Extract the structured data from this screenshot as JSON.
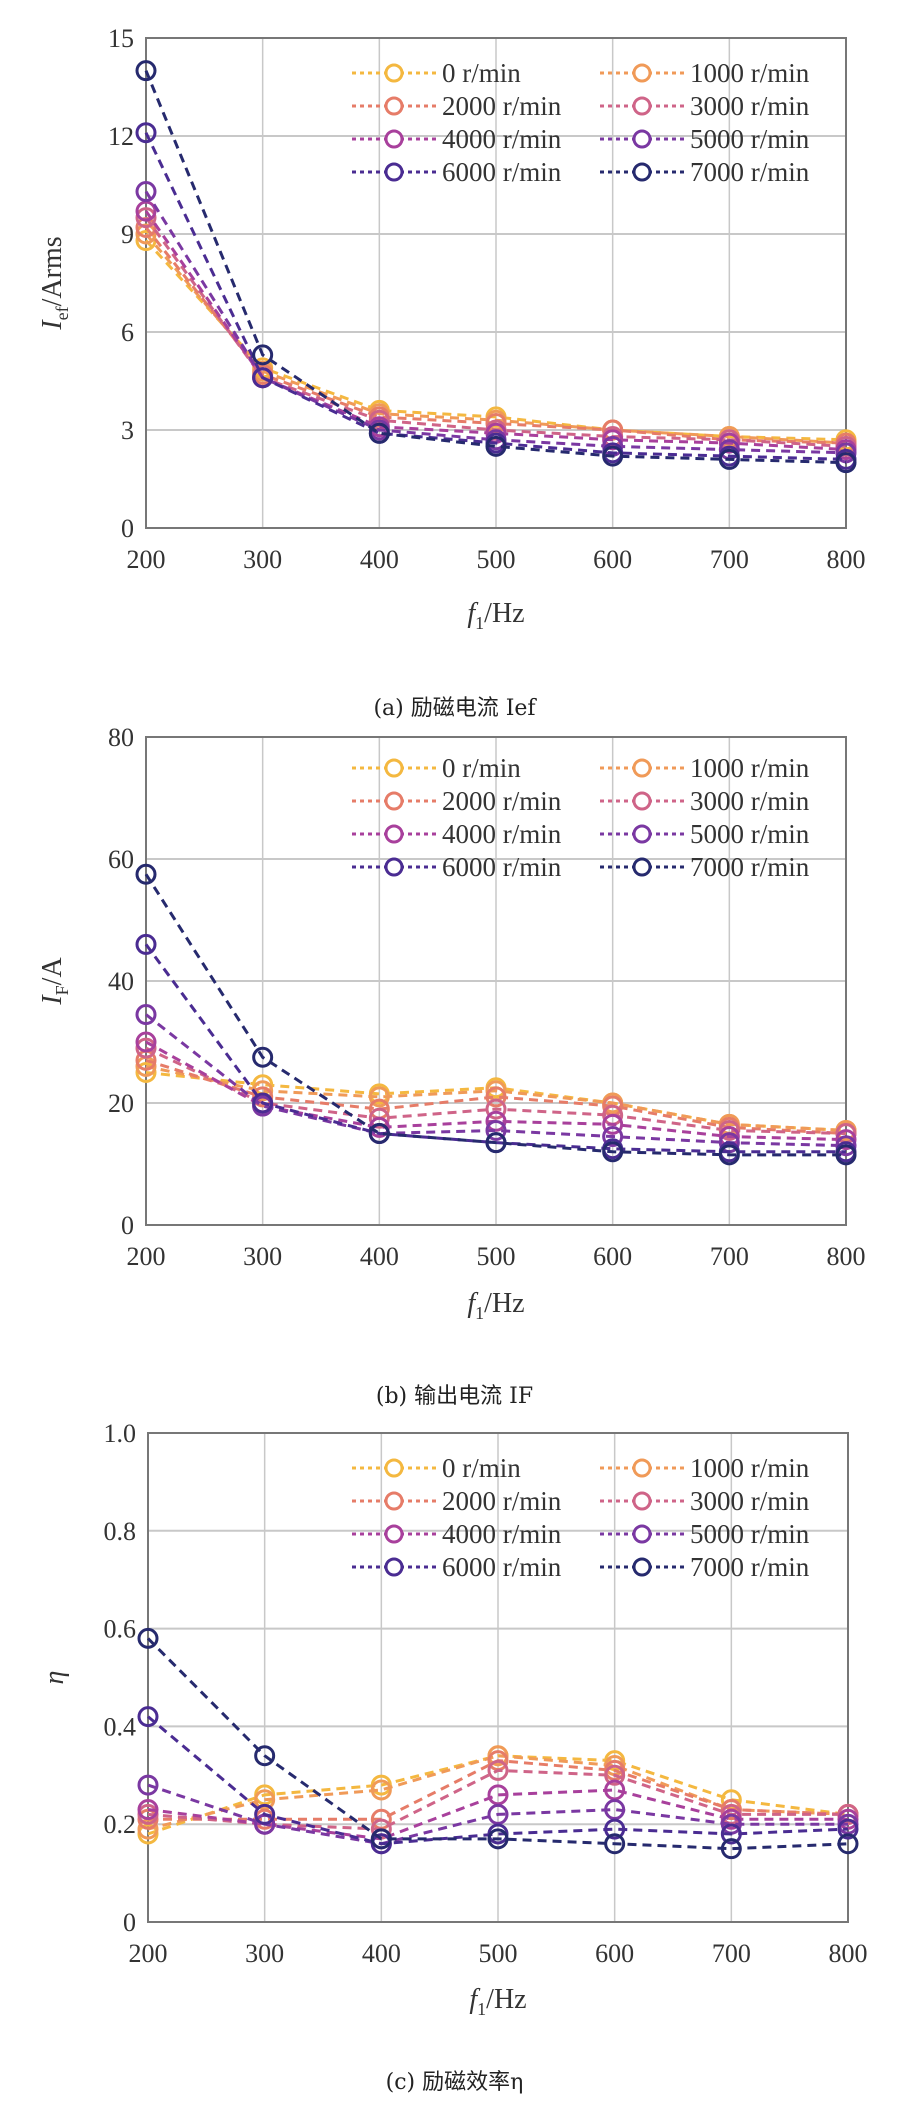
{
  "x_ticks": [
    "200",
    "300",
    "400",
    "500",
    "600",
    "700",
    "800"
  ],
  "chart_data": [
    {
      "type": "line",
      "x": [
        200,
        300,
        400,
        500,
        600,
        700,
        800
      ],
      "xlim": [
        200,
        800
      ],
      "ylim": [
        0,
        15
      ],
      "y_ticks": [
        0,
        3,
        6,
        9,
        12,
        15
      ],
      "xlabel": {
        "symbol": "f",
        "subscript": "1",
        "unit": "/Hz"
      },
      "ylabel": {
        "symbol": "I",
        "subscript": "ef",
        "unit": "/Arms"
      },
      "grid": true,
      "legend": "top-right",
      "line_style": "dashed",
      "marker": "open-circle",
      "caption": "(a) 励磁电流 Ief",
      "series": [
        {
          "name": "0 r/min",
          "color": "#f4b840",
          "values": [
            8.8,
            4.9,
            3.6,
            3.4,
            3.0,
            2.8,
            2.7
          ]
        },
        {
          "name": "1000 r/min",
          "color": "#f09a58",
          "values": [
            9.0,
            4.8,
            3.5,
            3.3,
            3.0,
            2.8,
            2.6
          ]
        },
        {
          "name": "2000 r/min",
          "color": "#e67c68",
          "values": [
            9.2,
            4.7,
            3.4,
            3.2,
            3.0,
            2.7,
            2.6
          ]
        },
        {
          "name": "3000 r/min",
          "color": "#cf6488",
          "values": [
            9.5,
            4.6,
            3.3,
            3.0,
            2.8,
            2.7,
            2.5
          ]
        },
        {
          "name": "4000 r/min",
          "color": "#a8409c",
          "values": [
            9.7,
            4.6,
            3.1,
            2.9,
            2.7,
            2.6,
            2.4
          ]
        },
        {
          "name": "5000 r/min",
          "color": "#7a38a2",
          "values": [
            10.3,
            4.6,
            3.0,
            2.7,
            2.5,
            2.4,
            2.3
          ]
        },
        {
          "name": "6000 r/min",
          "color": "#4a2c92",
          "values": [
            12.1,
            4.6,
            2.9,
            2.6,
            2.3,
            2.2,
            2.1
          ]
        },
        {
          "name": "7000 r/min",
          "color": "#262a6e",
          "values": [
            14.0,
            5.3,
            2.9,
            2.5,
            2.2,
            2.1,
            2.0
          ]
        }
      ]
    },
    {
      "type": "line",
      "x": [
        200,
        300,
        400,
        500,
        600,
        700,
        800
      ],
      "xlim": [
        200,
        800
      ],
      "ylim": [
        0,
        80
      ],
      "y_ticks": [
        0,
        20,
        40,
        60,
        80
      ],
      "xlabel": {
        "symbol": "f",
        "subscript": "1",
        "unit": "/Hz"
      },
      "ylabel": {
        "symbol": "I",
        "subscript": "F",
        "unit": "/A"
      },
      "grid": true,
      "legend": "top-right",
      "line_style": "dashed",
      "marker": "open-circle",
      "caption": "(b) 输出电流 IF",
      "series": [
        {
          "name": "0 r/min",
          "color": "#f4b840",
          "values": [
            25,
            23,
            21.5,
            22.5,
            20,
            16.5,
            15.5
          ]
        },
        {
          "name": "1000 r/min",
          "color": "#f09a58",
          "values": [
            26,
            22,
            21,
            22,
            20,
            16.5,
            15.5
          ]
        },
        {
          "name": "2000 r/min",
          "color": "#e67c68",
          "values": [
            27,
            21,
            19,
            21,
            19.5,
            16,
            15
          ]
        },
        {
          "name": "3000 r/min",
          "color": "#cf6488",
          "values": [
            29,
            20,
            17.5,
            19,
            18,
            15.5,
            15
          ]
        },
        {
          "name": "4000 r/min",
          "color": "#a8409c",
          "values": [
            30,
            19.5,
            16,
            17,
            16.5,
            14.5,
            14
          ]
        },
        {
          "name": "5000 r/min",
          "color": "#7a38a2",
          "values": [
            34.5,
            19.5,
            15,
            15.5,
            14.5,
            13.5,
            13
          ]
        },
        {
          "name": "6000 r/min",
          "color": "#4a2c92",
          "values": [
            46,
            20,
            15,
            13.5,
            12.5,
            12,
            12
          ]
        },
        {
          "name": "7000 r/min",
          "color": "#262a6e",
          "values": [
            57.5,
            27.5,
            15,
            13.5,
            12,
            11.5,
            11.5
          ]
        }
      ]
    },
    {
      "type": "line",
      "x": [
        200,
        300,
        400,
        500,
        600,
        700,
        800
      ],
      "xlim": [
        200,
        800
      ],
      "ylim": [
        0,
        1.0
      ],
      "y_ticks": [
        0,
        0.2,
        0.4,
        0.6,
        0.8,
        1.0
      ],
      "y_tick_labels": [
        "0",
        "0.2",
        "0.4",
        "0.6",
        "0.8",
        "1.0"
      ],
      "xlabel": {
        "symbol": "f",
        "subscript": "1",
        "unit": "/Hz"
      },
      "ylabel": {
        "symbol": "η",
        "subscript": "",
        "unit": ""
      },
      "grid": true,
      "legend": "top-right",
      "line_style": "dashed",
      "marker": "open-circle",
      "caption": "(c) 励磁效率η",
      "series": [
        {
          "name": "0 r/min",
          "color": "#f4b840",
          "values": [
            0.18,
            0.26,
            0.28,
            0.34,
            0.33,
            0.25,
            0.22
          ]
        },
        {
          "name": "1000 r/min",
          "color": "#f09a58",
          "values": [
            0.19,
            0.25,
            0.27,
            0.34,
            0.32,
            0.23,
            0.22
          ]
        },
        {
          "name": "2000 r/min",
          "color": "#e67c68",
          "values": [
            0.21,
            0.21,
            0.21,
            0.33,
            0.31,
            0.23,
            0.22
          ]
        },
        {
          "name": "3000 r/min",
          "color": "#cf6488",
          "values": [
            0.22,
            0.2,
            0.19,
            0.31,
            0.3,
            0.22,
            0.22
          ]
        },
        {
          "name": "4000 r/min",
          "color": "#a8409c",
          "values": [
            0.23,
            0.2,
            0.17,
            0.26,
            0.27,
            0.21,
            0.21
          ]
        },
        {
          "name": "5000 r/min",
          "color": "#7a38a2",
          "values": [
            0.28,
            0.2,
            0.16,
            0.22,
            0.23,
            0.2,
            0.2
          ]
        },
        {
          "name": "6000 r/min",
          "color": "#4a2c92",
          "values": [
            0.42,
            0.22,
            0.16,
            0.18,
            0.19,
            0.18,
            0.19
          ]
        },
        {
          "name": "7000 r/min",
          "color": "#262a6e",
          "values": [
            0.58,
            0.34,
            0.17,
            0.17,
            0.16,
            0.15,
            0.16
          ]
        }
      ]
    }
  ]
}
